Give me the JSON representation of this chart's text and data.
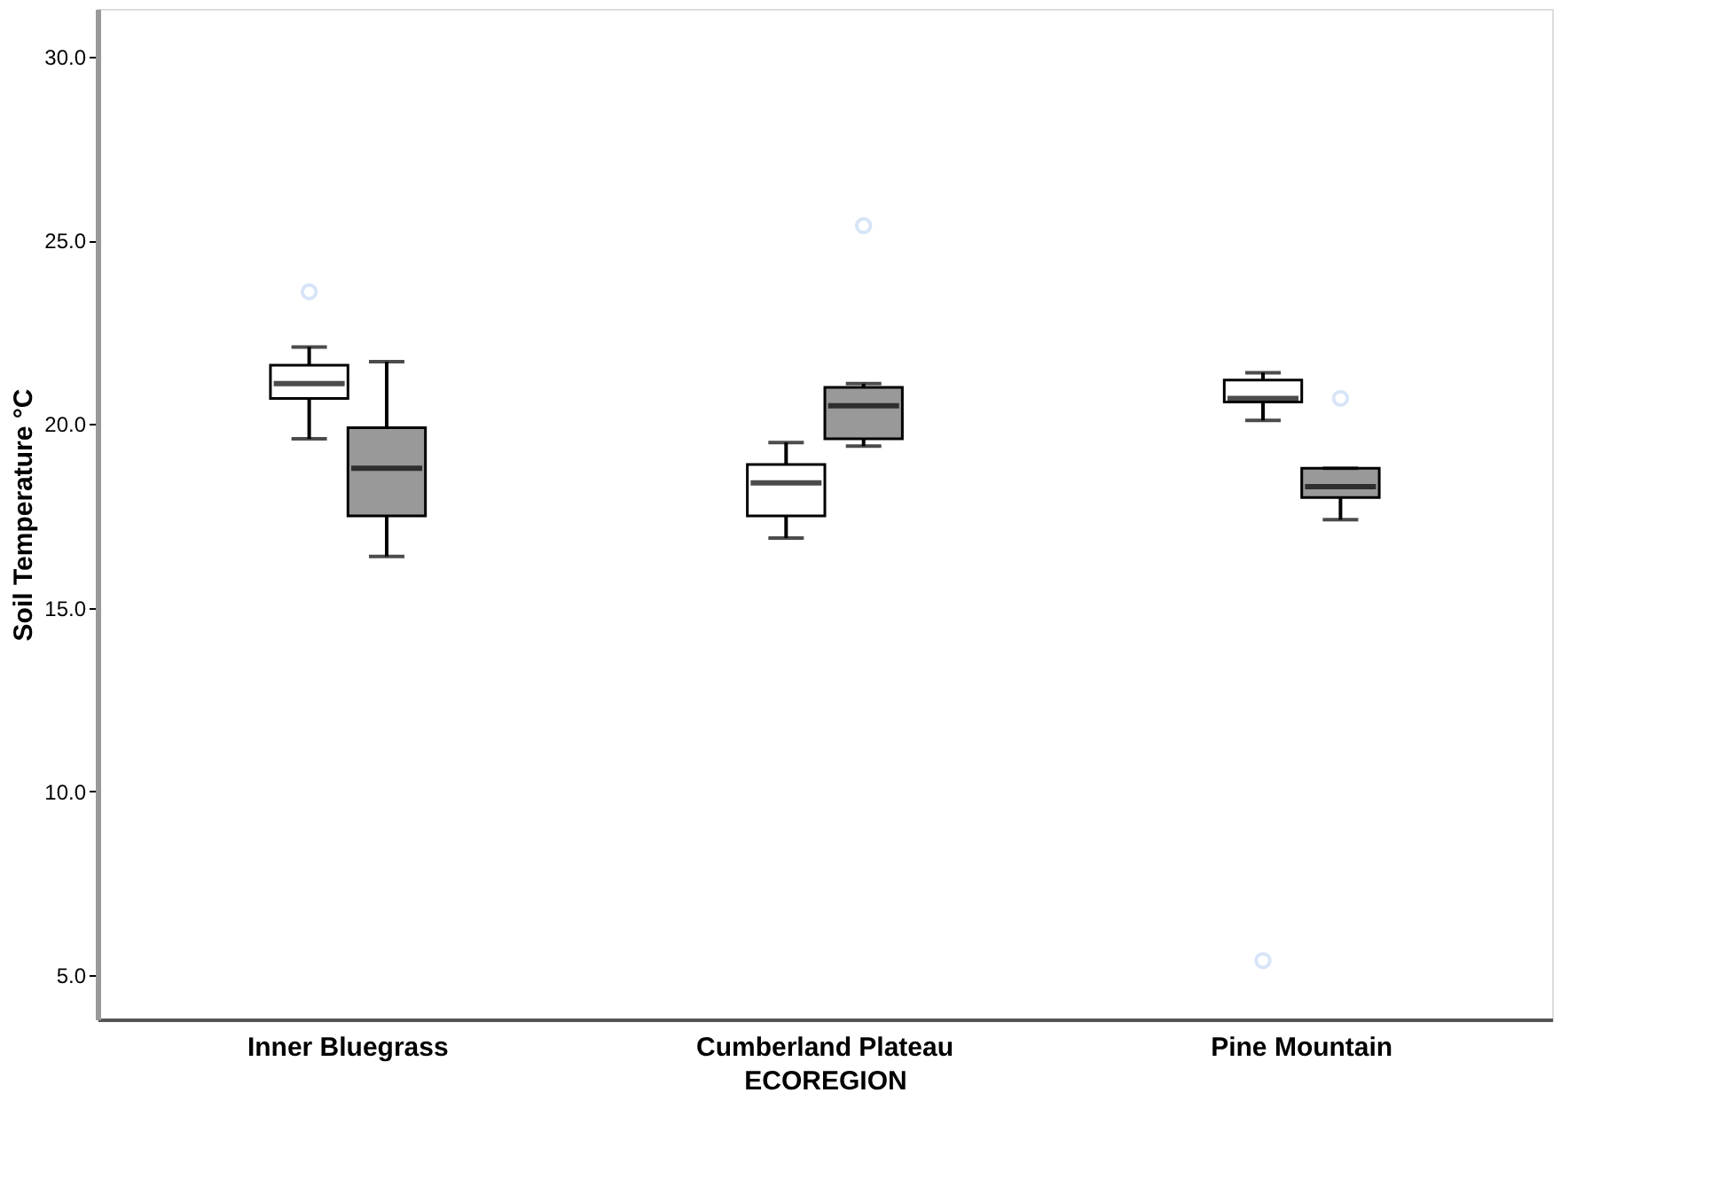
{
  "chart_data": {
    "type": "box",
    "xlabel": "ECOREGION",
    "ylabel": "Soil Temperature °C",
    "categories": [
      "Inner Bluegrass",
      "Cumberland Plateau",
      "Pine Mountain"
    ],
    "ylim": [
      3.8,
      31.3
    ],
    "yticks": [
      {
        "value": 5,
        "label": "5.0"
      },
      {
        "value": 10,
        "label": "10.0"
      },
      {
        "value": 15,
        "label": "15.0"
      },
      {
        "value": 20,
        "label": "20.0"
      },
      {
        "value": 25,
        "label": "25.0"
      },
      {
        "value": 30,
        "label": "30.0"
      }
    ],
    "series": [
      {
        "color": "#ffffff",
        "boxes": [
          {
            "low": 19.6,
            "q1": 20.7,
            "median": 21.1,
            "q3": 21.6,
            "high": 22.1,
            "outliers": [
              23.6
            ]
          },
          {
            "low": 16.9,
            "q1": 17.5,
            "median": 18.4,
            "q3": 18.9,
            "high": 19.5
          },
          {
            "low": 20.1,
            "q1": 20.6,
            "median": 20.7,
            "q3": 21.2,
            "high": 21.4,
            "outliers": [
              5.4
            ]
          }
        ]
      },
      {
        "color": "#999999",
        "boxes": [
          {
            "low": 16.4,
            "q1": 17.5,
            "median": 18.8,
            "q3": 19.9,
            "high": 21.7
          },
          {
            "low": 19.4,
            "q1": 19.6,
            "median": 20.5,
            "q3": 21.0,
            "high": 21.1,
            "outliers": [
              25.4
            ]
          },
          {
            "low": 17.4,
            "q1": 18.0,
            "median": 18.3,
            "q3": 18.8,
            "high": 18.8,
            "outliers": [
              20.7
            ]
          }
        ]
      }
    ]
  }
}
